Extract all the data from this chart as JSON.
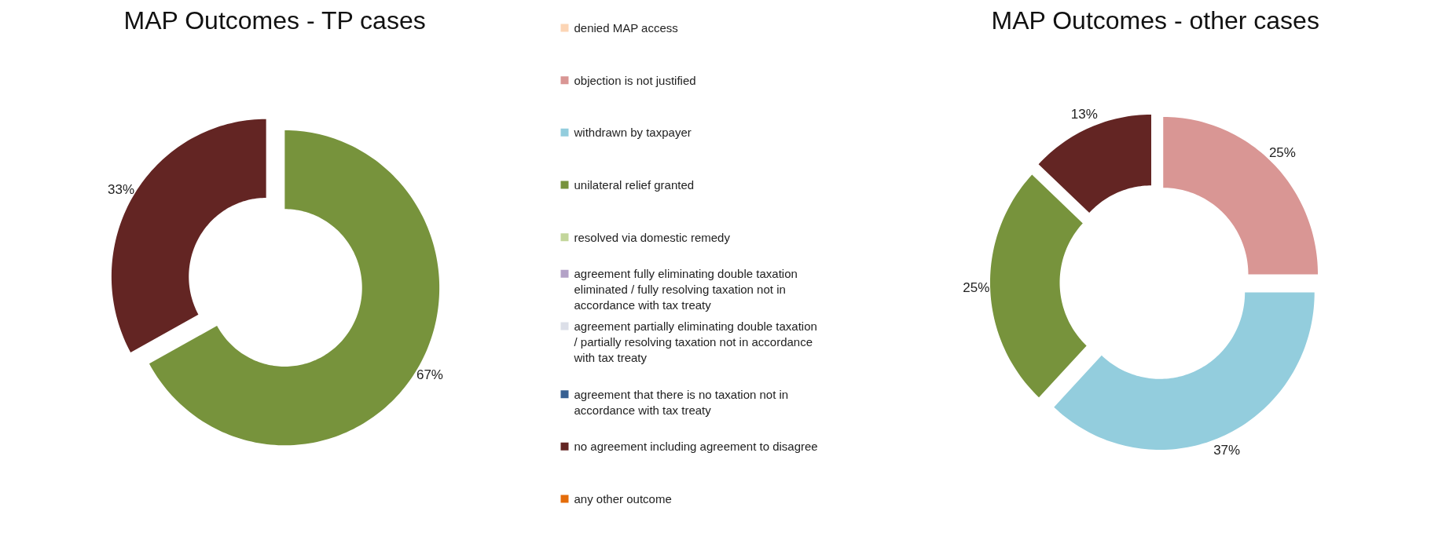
{
  "chart_data": [
    {
      "type": "donut",
      "title": "MAP Outcomes - TP cases",
      "legend": "right",
      "categories": [
        "denied MAP access",
        "objection is not justified",
        "withdrawn by taxpayer",
        "unilateral relief granted",
        "resolved via domestic remedy",
        "agreement fully eliminating double taxation eliminated / fully resolving taxation not in accordance with tax treaty",
        "agreement partially eliminating double taxation / partially resolving taxation not in accordance with tax treaty",
        "agreement that there is no taxation not in accordance with tax treaty",
        "no agreement including agreement to disagree",
        "any other outcome"
      ],
      "values": [
        0,
        0,
        0,
        67,
        0,
        0,
        0,
        0,
        33,
        0
      ],
      "colors": [
        "#fcd5b5",
        "#d99694",
        "#93cddd",
        "#77933c",
        "#c3d69b",
        "#b3a2c7",
        "#dcdfe8",
        "#376092",
        "#632523",
        "#e46c0a"
      ],
      "value_labels": [
        null,
        null,
        null,
        "67%",
        null,
        null,
        null,
        null,
        "33%",
        null
      ]
    },
    {
      "type": "donut",
      "title": "MAP Outcomes - other cases",
      "categories": [
        null,
        null,
        null,
        null,
        null,
        null,
        null,
        null,
        null,
        null
      ],
      "values": [
        0,
        25,
        37,
        25,
        0,
        0,
        0,
        0,
        13,
        0
      ],
      "colors": [
        "#fcd5b5",
        "#d99694",
        "#93cddd",
        "#77933c",
        "#c3d69b",
        "#b3a2c7",
        "#dcdfe8",
        "#376092",
        "#632523",
        "#e46c0a"
      ],
      "value_labels": [
        null,
        "25%",
        "37%",
        "25%",
        null,
        null,
        null,
        null,
        "13%",
        null
      ]
    }
  ]
}
